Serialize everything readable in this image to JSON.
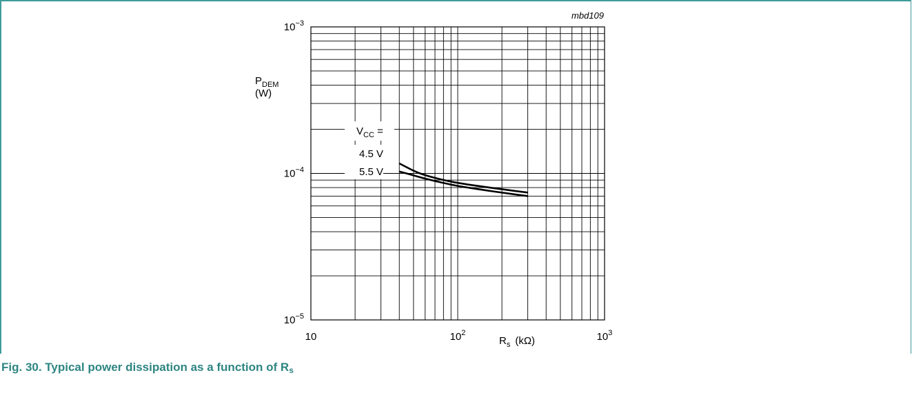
{
  "figure": {
    "tag": "mbd109",
    "caption_prefix": "Fig. 30.  Typical power dissipation as a function of R",
    "caption_sub": "s"
  },
  "chart_data": {
    "type": "line",
    "x_scale": "log",
    "y_scale": "log",
    "xlim": [
      10,
      1000
    ],
    "ylim": [
      1e-05,
      0.001
    ],
    "grid": true,
    "ylabel": {
      "main": "P",
      "sub": "DEM",
      "unit": "(W)"
    },
    "xlabel": {
      "main": "R",
      "sub": "s",
      "unit": "(kΩ)"
    },
    "x_ticks": [
      {
        "value": 10,
        "base": "10",
        "exp": ""
      },
      {
        "value": 100,
        "base": "10",
        "exp": "2"
      },
      {
        "value": 1000,
        "base": "10",
        "exp": "3"
      }
    ],
    "y_ticks": [
      {
        "value": 0.001,
        "base": "10",
        "exp": "−3"
      },
      {
        "value": 0.0001,
        "base": "10",
        "exp": "−4"
      },
      {
        "value": 1e-05,
        "base": "10",
        "exp": "−5"
      }
    ],
    "legend": {
      "title_main": "V",
      "title_sub": "CC",
      "title_suffix": " ="
    },
    "series": [
      {
        "name": "4.5 V",
        "x": [
          40,
          50,
          60,
          80,
          100,
          150,
          200,
          300
        ],
        "y": [
          0.000117,
          0.000104,
          9.7e-05,
          9e-05,
          8.6e-05,
          8.1e-05,
          7.8e-05,
          7.4e-05
        ]
      },
      {
        "name": "5.5 V",
        "x": [
          40,
          50,
          60,
          80,
          100,
          150,
          200,
          300
        ],
        "y": [
          0.000103,
          9.7e-05,
          9.2e-05,
          8.6e-05,
          8.2e-05,
          7.7e-05,
          7.4e-05,
          7e-05
        ]
      }
    ]
  }
}
